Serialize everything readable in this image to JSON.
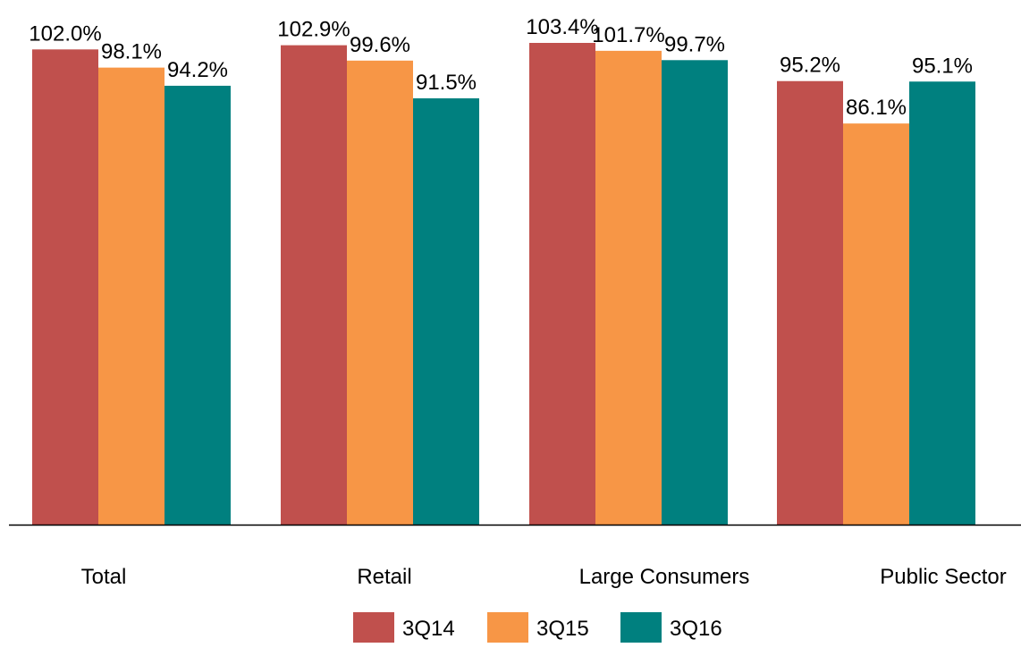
{
  "chart_data": {
    "type": "bar",
    "categories": [
      "Total",
      "Retail",
      "Large Consumers",
      "Public Sector"
    ],
    "series": [
      {
        "name": "3Q14",
        "color": "#C0504D",
        "values": [
          102.0,
          102.9,
          103.4,
          95.2
        ],
        "labels": [
          "102.0%",
          "102.9%",
          "103.4%",
          "95.2%"
        ]
      },
      {
        "name": "3Q15",
        "color": "#F79646",
        "values": [
          98.1,
          99.6,
          101.7,
          86.1
        ],
        "labels": [
          "98.1%",
          "99.6%",
          "101.7%",
          "86.1%"
        ]
      },
      {
        "name": "3Q16",
        "color": "#00807F",
        "values": [
          94.2,
          91.5,
          99.7,
          95.1
        ],
        "labels": [
          "94.2%",
          "91.5%",
          "99.7%",
          "95.1%"
        ]
      }
    ],
    "ylim": [
      0,
      103.4
    ],
    "title": "",
    "xlabel": "",
    "ylabel": "",
    "grid": false,
    "legend_position": "bottom-center"
  }
}
